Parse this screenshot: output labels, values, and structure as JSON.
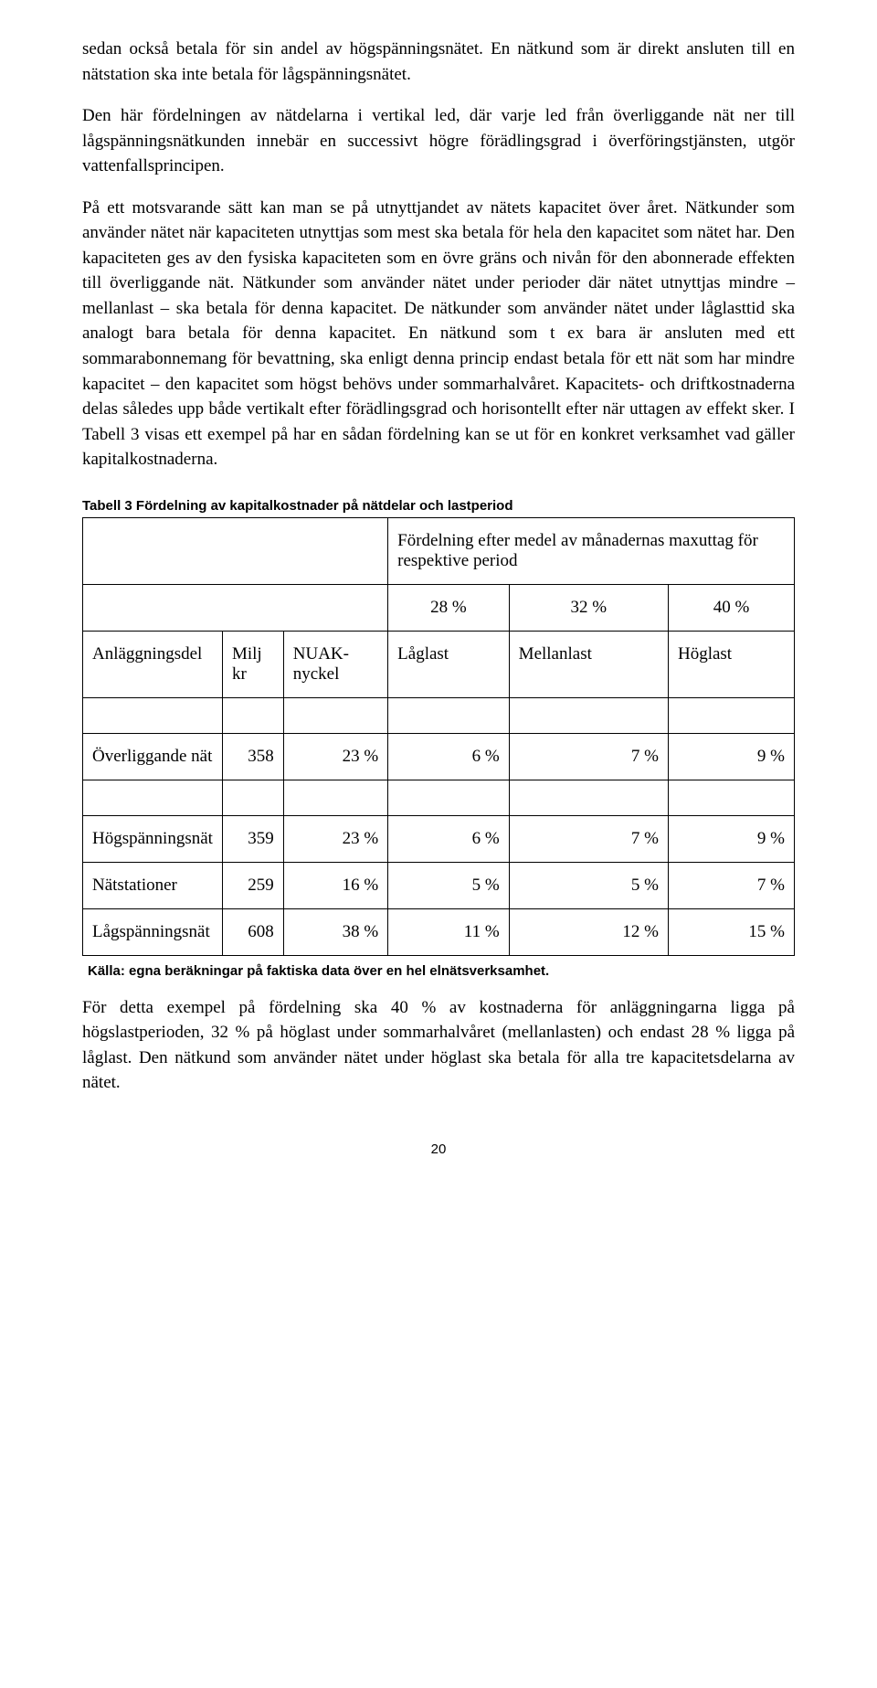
{
  "paragraphs": {
    "p1": "sedan också betala för sin andel av högspänningsnätet. En nätkund som är direkt ansluten till en nätstation ska inte betala för lågspänningsnätet.",
    "p2": "Den här fördelningen av nätdelarna i vertikal led, där varje led från överliggande nät ner till lågspänningsnätkunden innebär en successivt högre förädlingsgrad i överföringstjänsten, utgör vattenfallsprincipen.",
    "p3": "På ett motsvarande sätt kan man se på utnyttjandet av nätets kapacitet över året. Nätkunder som använder nätet när kapaciteten utnyttjas som mest ska betala för hela den kapacitet som nätet har. Den kapaciteten ges av den fysiska kapaciteten som en övre gräns och nivån för den abonnerade effekten till överliggande nät. Nätkunder som använder nätet under perioder där nätet utnyttjas mindre – mellanlast – ska betala för denna kapacitet. De nätkunder som använder nätet under låglasttid ska analogt bara betala för denna kapacitet. En nätkund som t ex bara är ansluten med ett sommarabonnemang för bevattning, ska enligt denna princip endast betala för ett nät som har mindre kapacitet – den kapacitet som högst behövs under sommarhalvåret. Kapacitets- och driftkostnaderna delas således upp både vertikalt efter förädlingsgrad och horisontellt efter när uttagen av effekt sker. I Tabell 3 visas ett exempel på har en sådan fördelning kan se ut för en konkret verksamhet vad gäller kapitalkostnaderna.",
    "p4": "För detta exempel på fördelning ska 40 % av kostnaderna för anläggningarna ligga på högslastperioden, 32 % på höglast under sommarhalvåret (mellanlasten) och endast 28 % ligga på låglast. Den nätkund som använder nätet under höglast ska betala för alla tre kapacitetsdelarna av nätet."
  },
  "table": {
    "caption": "Tabell 3 Fördelning av kapitalkostnader på nätdelar och lastperiod",
    "group_header": "Fördelning efter medel av månadernas maxuttag för respektive period",
    "percent_headers": {
      "c1": "28 %",
      "c2": "32 %",
      "c3": "40 %"
    },
    "col_headers": {
      "anl": "Anläggningsdel",
      "milj": "Milj kr",
      "nuak": "NUAK-nyckel",
      "lag": "Låglast",
      "mellan": "Mellanlast",
      "hog": "Höglast"
    },
    "rows": [
      {
        "label": "Överliggande nät",
        "milj": "358",
        "nuak": "23 %",
        "lag": "6 %",
        "mellan": "7 %",
        "hog": "9 %"
      },
      {
        "label": "Högspänningsnät",
        "milj": "359",
        "nuak": "23 %",
        "lag": "6 %",
        "mellan": "7 %",
        "hog": "9 %"
      },
      {
        "label": "Nätstationer",
        "milj": "259",
        "nuak": "16 %",
        "lag": "5 %",
        "mellan": "5 %",
        "hog": "7 %"
      },
      {
        "label": "Lågspänningsnät",
        "milj": "608",
        "nuak": "38 %",
        "lag": "11 %",
        "mellan": "12 %",
        "hog": "15 %"
      }
    ],
    "source": "Källa: egna beräkningar på faktiska data över en hel elnätsverksamhet."
  },
  "page_number": "20"
}
